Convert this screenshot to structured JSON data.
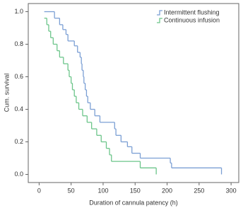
{
  "chart_data": {
    "type": "step",
    "x_label": "Duration of cannula patency (h)",
    "y_label": "Cum. survival",
    "xlim": [
      -17,
      312
    ],
    "ylim": [
      -0.05,
      1.05
    ],
    "xticks": [
      0,
      50,
      100,
      150,
      200,
      250,
      300
    ],
    "yticks": [
      {
        "value": 0,
        "label": "0.0"
      },
      {
        "value": 0.2,
        "label": "0.2"
      },
      {
        "value": 0.4,
        "label": "0.4"
      },
      {
        "value": 0.6,
        "label": "0.6"
      },
      {
        "value": 0.8,
        "label": "0.8"
      },
      {
        "value": 1,
        "label": "1.0"
      }
    ],
    "legend": "upper right",
    "series": [
      {
        "name": "Intermittent flushing",
        "color": "#7b9fd4",
        "x": [
          8,
          24,
          32,
          37,
          42,
          45,
          55,
          60,
          64,
          66,
          67,
          69,
          70,
          72,
          74,
          76,
          80,
          87,
          95,
          118,
          120,
          128,
          138,
          145,
          158,
          205,
          207,
          285
        ],
        "values": [
          1.0,
          0.96,
          0.92,
          0.89,
          0.86,
          0.82,
          0.79,
          0.75,
          0.72,
          0.68,
          0.64,
          0.6,
          0.56,
          0.52,
          0.48,
          0.44,
          0.4,
          0.36,
          0.32,
          0.28,
          0.24,
          0.2,
          0.17,
          0.13,
          0.1,
          0.07,
          0.04,
          0.0
        ]
      },
      {
        "name": "Continuous infusion",
        "color": "#6cc58a",
        "x": [
          8,
          12,
          15,
          18,
          22,
          28,
          32,
          38,
          45,
          47,
          50,
          52,
          55,
          58,
          62,
          68,
          75,
          82,
          90,
          97,
          105,
          110,
          113,
          158,
          183
        ],
        "values": [
          0.96,
          0.92,
          0.88,
          0.84,
          0.8,
          0.76,
          0.72,
          0.68,
          0.64,
          0.6,
          0.56,
          0.52,
          0.48,
          0.44,
          0.4,
          0.36,
          0.32,
          0.28,
          0.24,
          0.2,
          0.16,
          0.12,
          0.08,
          0.04,
          0.0
        ]
      }
    ]
  }
}
